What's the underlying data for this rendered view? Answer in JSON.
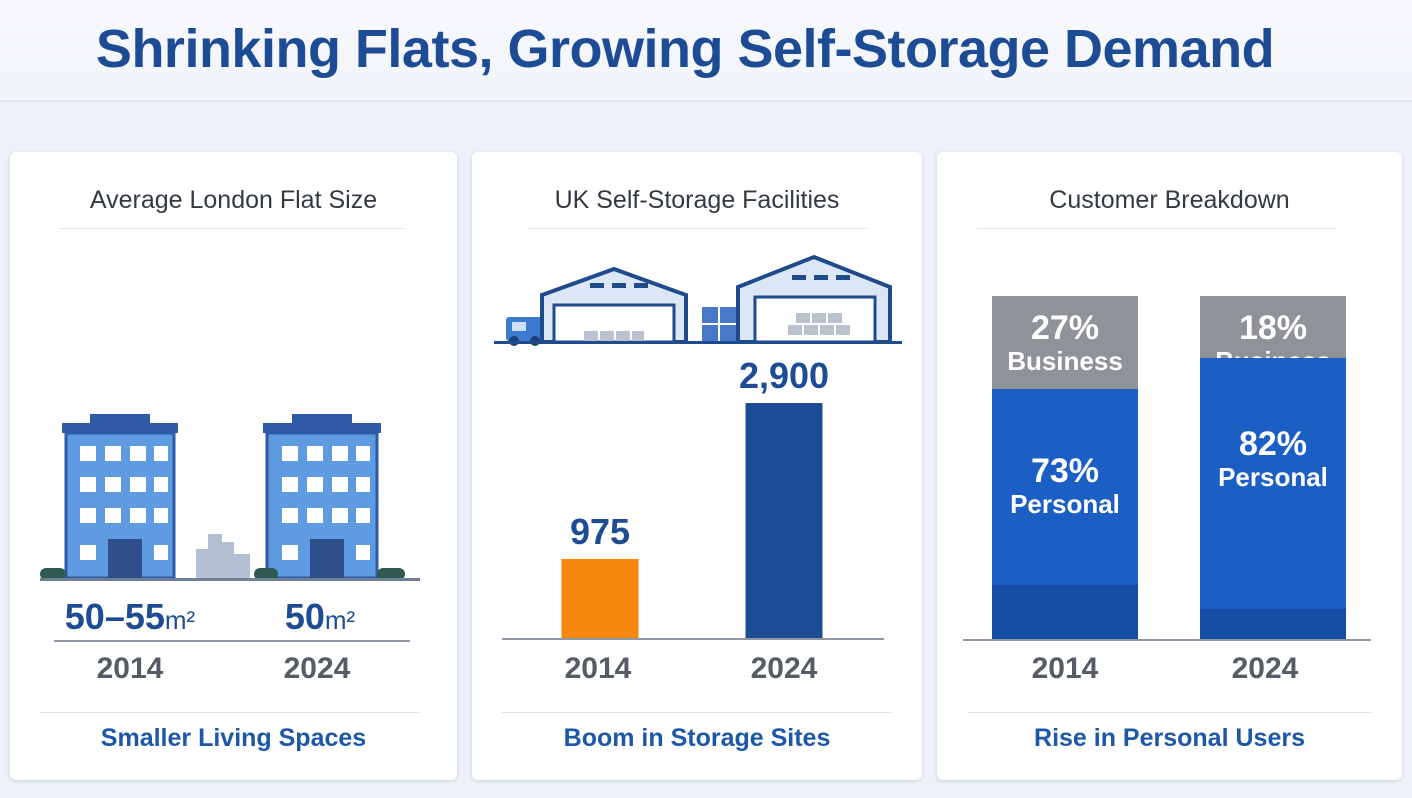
{
  "title": "Shrinking Flats, Growing Self-Storage Demand",
  "panels": [
    {
      "title": "Average London Flat Size",
      "footer": "Smaller Living Spaces",
      "sizes": [
        {
          "value": "50–55",
          "unit": "m²",
          "year": "2014"
        },
        {
          "value": "50",
          "unit": "m²",
          "year": "2024"
        }
      ]
    },
    {
      "title": "UK Self-Storage Facilities",
      "footer": "Boom in Storage Sites",
      "labels": [
        "975",
        "2,900"
      ],
      "years": [
        "2014",
        "2024"
      ]
    },
    {
      "title": "Customer Breakdown",
      "footer": "Rise in Personal Users",
      "years": [
        "2014",
        "2024"
      ],
      "segments": [
        {
          "business_pct": "27%",
          "business_label": "Business",
          "personal_pct": "73%",
          "personal_label": "Personal"
        },
        {
          "business_pct": "18%",
          "business_label": "Business",
          "personal_pct": "82%",
          "personal_label": "Personal"
        }
      ]
    }
  ],
  "chart_data": [
    {
      "type": "bar",
      "title": "UK Self-Storage Facilities",
      "categories": [
        "2014",
        "2024"
      ],
      "values": [
        975,
        2900
      ],
      "colors": [
        "#f5870c",
        "#1d4b94"
      ]
    },
    {
      "type": "bar",
      "title": "Customer Breakdown",
      "categories": [
        "2014",
        "2024"
      ],
      "series": [
        {
          "name": "Business",
          "values": [
            27,
            18
          ],
          "color": "#8f9399"
        },
        {
          "name": "Personal",
          "values": [
            73,
            82
          ],
          "color": "#1c5fc4"
        }
      ]
    }
  ],
  "colors": {
    "title": "#1d4b94",
    "orange": "#f5870c",
    "navy": "#1d4b94",
    "blue": "#1c5fc4",
    "grey": "#8f9399"
  }
}
